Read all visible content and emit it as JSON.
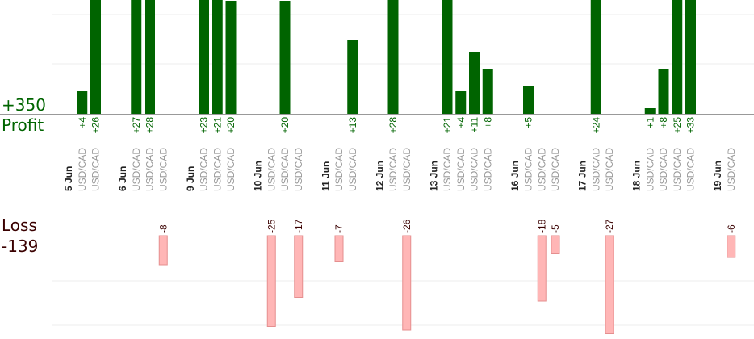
{
  "summary": {
    "profit_total": "+350",
    "profit_label": "Profit",
    "loss_label": "Loss",
    "loss_total": "-139"
  },
  "colors": {
    "profit_bar": "#006400",
    "profit_text": "#006400",
    "loss_fill": "#ffb6b6",
    "loss_edge": "#e58f8f",
    "loss_text": "#3a0000",
    "axis": "#999999",
    "grid": "#eeeeee",
    "instrument_text": "#999999",
    "date_text": "#222222"
  },
  "chart_data": {
    "type": "bar",
    "profit_ylim": [
      0,
      30
    ],
    "loss_ylim": [
      0,
      26
    ],
    "grid": true,
    "categories": [
      {
        "kind": "date",
        "label": "5 Jun"
      },
      {
        "kind": "trade",
        "label": "USD/CAD",
        "value": 4,
        "text": "+4"
      },
      {
        "kind": "trade",
        "label": "USD/CAD",
        "value": 26,
        "text": "+26"
      },
      {
        "kind": "gap"
      },
      {
        "kind": "date",
        "label": "6 Jun"
      },
      {
        "kind": "trade",
        "label": "USD/CAD",
        "value": 27,
        "text": "+27"
      },
      {
        "kind": "trade",
        "label": "USD/CAD",
        "value": 28,
        "text": "+28"
      },
      {
        "kind": "trade",
        "label": "USD/CAD",
        "value": -8,
        "text": "-8"
      },
      {
        "kind": "gap"
      },
      {
        "kind": "date",
        "label": "9 Jun"
      },
      {
        "kind": "trade",
        "label": "USD/CAD",
        "value": 23,
        "text": "+23"
      },
      {
        "kind": "trade",
        "label": "USD/CAD",
        "value": 21,
        "text": "+21"
      },
      {
        "kind": "trade",
        "label": "USD/CAD",
        "value": 20,
        "text": "+20"
      },
      {
        "kind": "gap"
      },
      {
        "kind": "date",
        "label": "10 Jun"
      },
      {
        "kind": "trade",
        "label": "USD/CAD",
        "value": -25,
        "text": "-25"
      },
      {
        "kind": "trade",
        "label": "USD/CAD",
        "value": 20,
        "text": "+20"
      },
      {
        "kind": "trade",
        "label": "USD/CAD",
        "value": -17,
        "text": "-17"
      },
      {
        "kind": "gap"
      },
      {
        "kind": "date",
        "label": "11 Jun"
      },
      {
        "kind": "trade",
        "label": "USD/CAD",
        "value": -7,
        "text": "-7"
      },
      {
        "kind": "trade",
        "label": "USD/CAD",
        "value": 13,
        "text": "+13"
      },
      {
        "kind": "gap"
      },
      {
        "kind": "date",
        "label": "12 Jun"
      },
      {
        "kind": "trade",
        "label": "USD/CAD",
        "value": 28,
        "text": "+28"
      },
      {
        "kind": "trade",
        "label": "USD/CAD",
        "value": -26,
        "text": "-26"
      },
      {
        "kind": "gap"
      },
      {
        "kind": "date",
        "label": "13 Jun"
      },
      {
        "kind": "trade",
        "label": "USD/CAD",
        "value": 21,
        "text": "+21"
      },
      {
        "kind": "trade",
        "label": "USD/CAD",
        "value": 4,
        "text": "+4"
      },
      {
        "kind": "trade",
        "label": "USD/CAD",
        "value": 11,
        "text": "+11"
      },
      {
        "kind": "trade",
        "label": "USD/CAD",
        "value": 8,
        "text": "+8"
      },
      {
        "kind": "gap"
      },
      {
        "kind": "date",
        "label": "16 Jun"
      },
      {
        "kind": "trade",
        "label": "USD/CAD",
        "value": 5,
        "text": "+5"
      },
      {
        "kind": "trade",
        "label": "USD/CAD",
        "value": -18,
        "text": "-18"
      },
      {
        "kind": "trade",
        "label": "USD/CAD",
        "value": -5,
        "text": "-5"
      },
      {
        "kind": "gap"
      },
      {
        "kind": "date",
        "label": "17 Jun"
      },
      {
        "kind": "trade",
        "label": "USD/CAD",
        "value": 24,
        "text": "+24"
      },
      {
        "kind": "trade",
        "label": "USD/CAD",
        "value": -27,
        "text": "-27"
      },
      {
        "kind": "gap"
      },
      {
        "kind": "date",
        "label": "18 Jun"
      },
      {
        "kind": "trade",
        "label": "USD/CAD",
        "value": 1,
        "text": "+1"
      },
      {
        "kind": "trade",
        "label": "USD/CAD",
        "value": 8,
        "text": "+8"
      },
      {
        "kind": "trade",
        "label": "USD/CAD",
        "value": 25,
        "text": "+25"
      },
      {
        "kind": "trade",
        "label": "USD/CAD",
        "value": 33,
        "text": "+33"
      },
      {
        "kind": "gap"
      },
      {
        "kind": "date",
        "label": "19 Jun"
      },
      {
        "kind": "trade",
        "label": "USD/CAD",
        "value": -6,
        "text": "-6"
      }
    ]
  }
}
